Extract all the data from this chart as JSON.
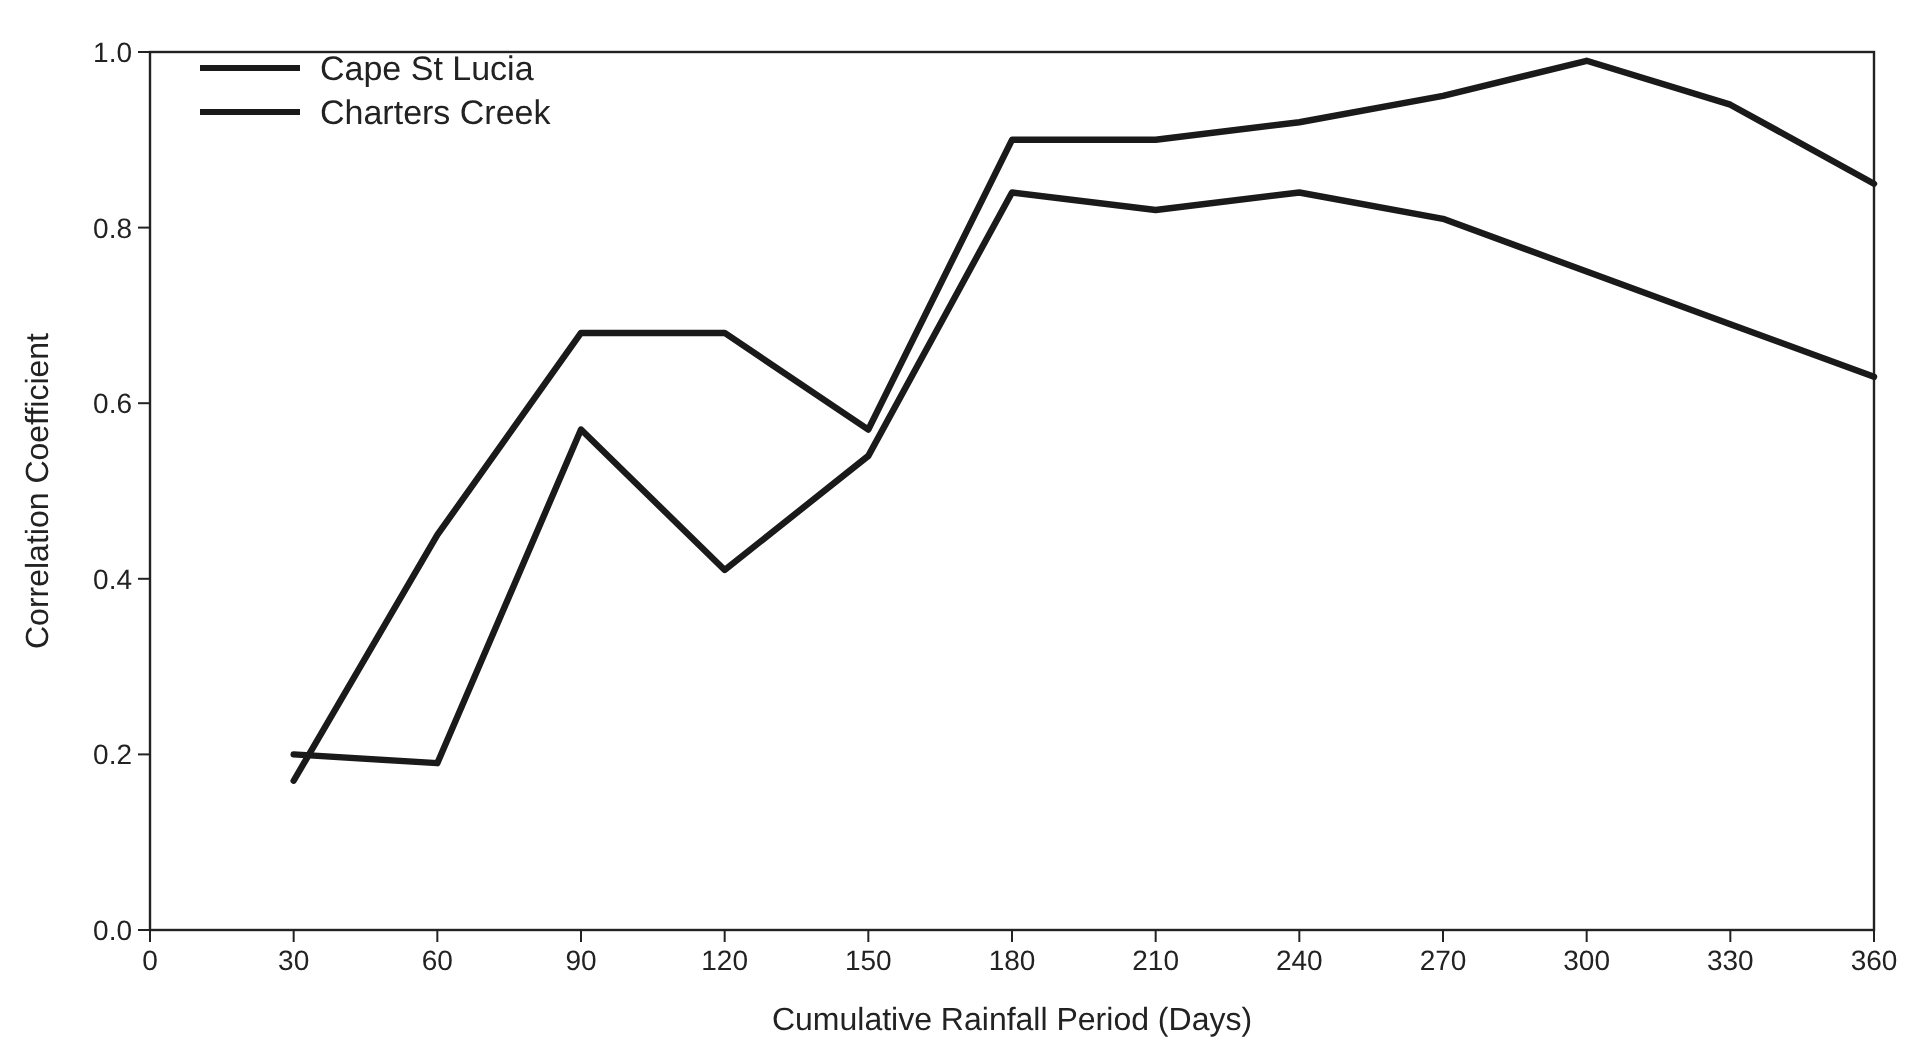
{
  "chart_data": {
    "type": "line",
    "xlabel": "Cumulative Rainfall Period (Days)",
    "ylabel": "Correlation Coefficient",
    "x": [
      30,
      60,
      90,
      120,
      150,
      180,
      210,
      240,
      270,
      300,
      330,
      360
    ],
    "series": [
      {
        "name": "Cape St Lucia",
        "color": "#1a1a1a",
        "values": [
          0.17,
          0.45,
          0.68,
          0.68,
          0.57,
          0.9,
          0.9,
          0.92,
          0.95,
          0.99,
          0.94,
          0.85
        ]
      },
      {
        "name": "Charters Creek",
        "color": "#1a1a1a",
        "values": [
          0.2,
          0.19,
          0.57,
          0.41,
          0.54,
          0.84,
          0.82,
          0.84,
          0.81,
          0.75,
          0.69,
          0.63
        ]
      }
    ],
    "xlim": [
      0,
      360
    ],
    "xticks": [
      0,
      30,
      60,
      90,
      120,
      150,
      180,
      210,
      240,
      270,
      300,
      330,
      360
    ],
    "ylim": [
      0,
      1
    ],
    "yticks": [
      {
        "value": 0,
        "label": "0.0"
      },
      {
        "value": 0.2,
        "label": "0.2"
      },
      {
        "value": 0.4,
        "label": "0.4"
      },
      {
        "value": 0.6,
        "label": "0.6"
      },
      {
        "value": 0.8,
        "label": "0.8"
      },
      {
        "value": 1,
        "label": "1.0"
      }
    ],
    "grid": false,
    "legend": "top left",
    "marker": "none",
    "line_style": "solid"
  }
}
